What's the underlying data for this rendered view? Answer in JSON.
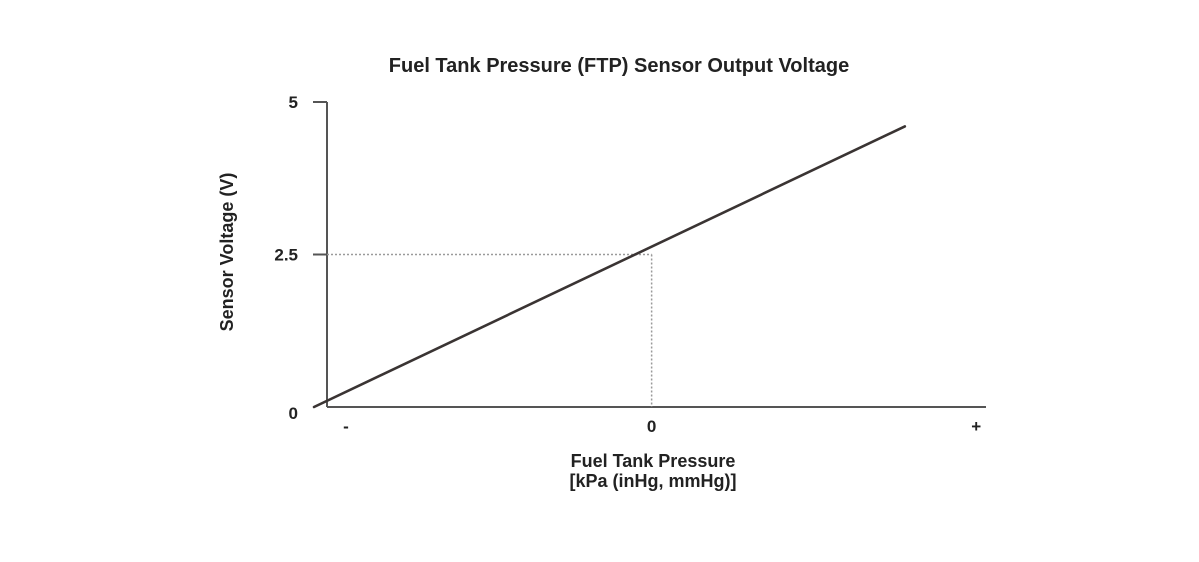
{
  "chart_data": {
    "type": "line",
    "title": "Fuel Tank Pressure (FTP) Sensor Output Voltage",
    "xlabel": "Fuel Tank Pressure",
    "xlabel_units": "[kPa (inHg, mmHg)]",
    "ylabel": "Sensor Voltage (V)",
    "x_ticks": [
      {
        "value": -1,
        "label": "-"
      },
      {
        "value": 0,
        "label": "0"
      },
      {
        "value": 1,
        "label": "+"
      }
    ],
    "y_ticks": [
      {
        "value": 0,
        "label": "0"
      },
      {
        "value": 2.5,
        "label": "2.5"
      },
      {
        "value": 5,
        "label": "5"
      }
    ],
    "xlim": [
      -1,
      1.03
    ],
    "ylim": [
      0,
      5
    ],
    "grid": false,
    "series": [
      {
        "x": [
          -1.04,
          0.78
        ],
        "y": [
          0,
          4.6
        ],
        "color": "#3a3433"
      }
    ],
    "reference": {
      "x": 0,
      "y": 2.5
    },
    "colors": {
      "axis": "#555555",
      "line": "#3a3433",
      "guide": "#9a9a9a"
    }
  }
}
